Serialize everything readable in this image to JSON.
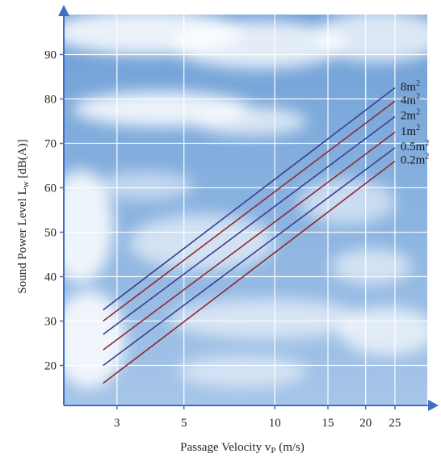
{
  "chart_data": {
    "type": "line",
    "x_scale": "log",
    "xlabel": "Passage Velocity vP (m/s)",
    "xlabel_parts": {
      "main": "Passage Velocity v",
      "sub": "P",
      "tail": " (m/s)"
    },
    "ylabel": "Sound Power Level Lw [dB(A)]",
    "ylabel_parts": {
      "main": "Sound Power Level L",
      "sub": "w",
      "tail": " [dB(A)]"
    },
    "x_ticks": [
      {
        "value": 3,
        "label": "3"
      },
      {
        "value": 5,
        "label": "5"
      },
      {
        "value": 10,
        "label": "10"
      },
      {
        "value": 15,
        "label": "15"
      },
      {
        "value": 20,
        "label": "20"
      },
      {
        "value": 25,
        "label": "25"
      }
    ],
    "y_ticks": [
      {
        "value": 20,
        "label": "20"
      },
      {
        "value": 30,
        "label": "30"
      },
      {
        "value": 40,
        "label": "40"
      },
      {
        "value": 50,
        "label": "50"
      },
      {
        "value": 60,
        "label": "60"
      },
      {
        "value": 70,
        "label": "70"
      },
      {
        "value": 80,
        "label": "80"
      },
      {
        "value": 90,
        "label": "90"
      }
    ],
    "xlim": [
      2.0,
      32
    ],
    "ylim": [
      11,
      99
    ],
    "grid": true,
    "background": "sky-with-clouds",
    "series": [
      {
        "name": "8m²",
        "label": "8m",
        "sup": "2",
        "color": "#3a3f8f",
        "x": [
          2.7,
          25
        ],
        "y": [
          32.5,
          82.5
        ]
      },
      {
        "name": "4m²",
        "label": "4m",
        "sup": "2",
        "color": "#8b2a35",
        "x": [
          2.7,
          25
        ],
        "y": [
          30,
          79.5
        ]
      },
      {
        "name": "2m²",
        "label": "2m",
        "sup": "2",
        "color": "#3a3f8f",
        "x": [
          2.7,
          25
        ],
        "y": [
          27,
          76
        ]
      },
      {
        "name": "1m²",
        "label": "1m",
        "sup": "2",
        "color": "#8b2a35",
        "x": [
          2.7,
          25
        ],
        "y": [
          23.5,
          72.5
        ]
      },
      {
        "name": "0.5m²",
        "label": "0.5m",
        "sup": "2",
        "color": "#3a3f8f",
        "x": [
          2.7,
          25
        ],
        "y": [
          20,
          69
        ]
      },
      {
        "name": "0.2m²",
        "label": "0.2m",
        "sup": "2",
        "color": "#8b2a35",
        "x": [
          2.7,
          25
        ],
        "y": [
          16,
          66
        ]
      }
    ],
    "axis_color": "#3f6fc4"
  }
}
